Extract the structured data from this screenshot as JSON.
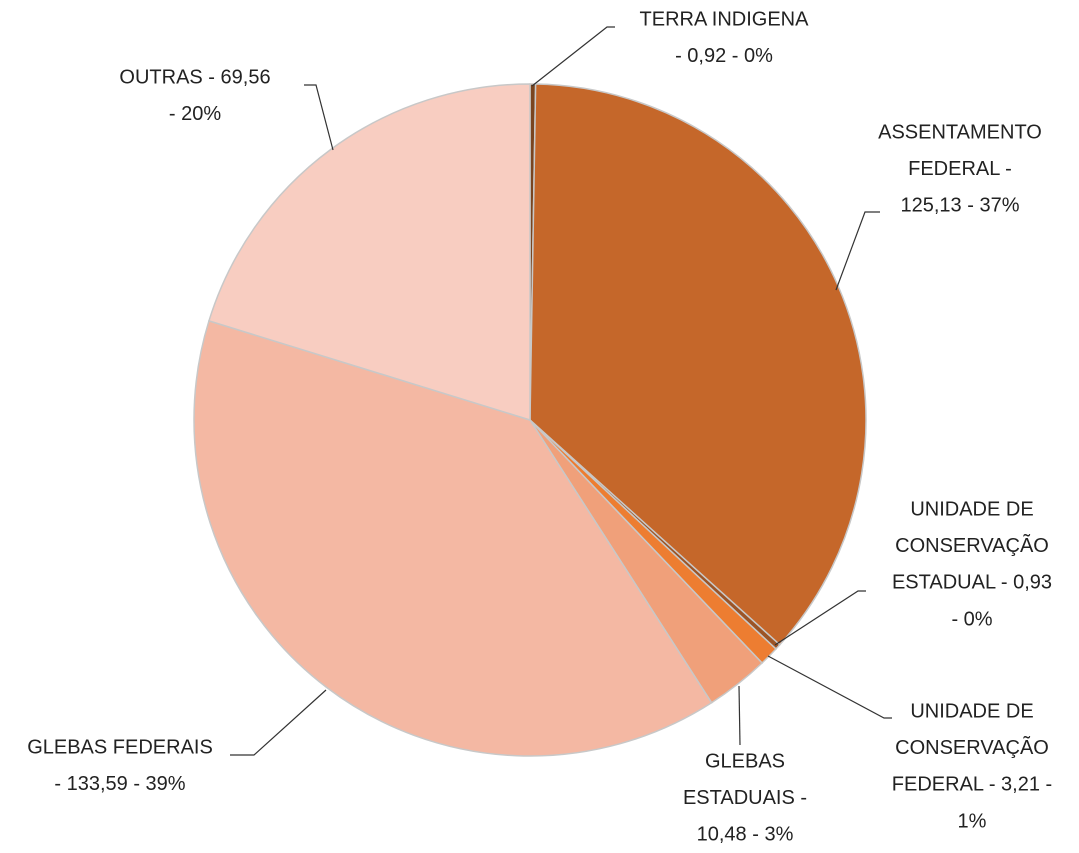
{
  "chart_data": {
    "type": "pie",
    "values": [
      0.92,
      125.13,
      0.93,
      3.21,
      10.48,
      133.59,
      69.56
    ],
    "data_labels": [
      [
        "TERRA INDIGENA",
        "- 0,92 -  0%"
      ],
      [
        "ASSENTAMENTO",
        "FEDERAL -",
        "125,13 -  37%"
      ],
      [
        "UNIDADE DE",
        "CONSERVAÇÃO",
        "ESTADUAL -  0,93",
        "- 0%"
      ],
      [
        "UNIDADE DE",
        "CONSERVAÇÃO",
        "FEDERAL -  3,21 -",
        "1%"
      ],
      [
        "GLEBAS",
        "ESTADUAIS -",
        "10,48 -  3%"
      ],
      [
        "GLEBAS FEDERAIS",
        "- 133,59 -  39%"
      ],
      [
        "OUTRAS  -  69,56",
        "- 20%"
      ]
    ],
    "colors": [
      "#7a4520",
      "#c5672a",
      "#9c5426",
      "#ed7d31",
      "#f0a07a",
      "#f4b8a3",
      "#f8cdc1"
    ],
    "start_angle": 0,
    "direction": "clockwise"
  }
}
